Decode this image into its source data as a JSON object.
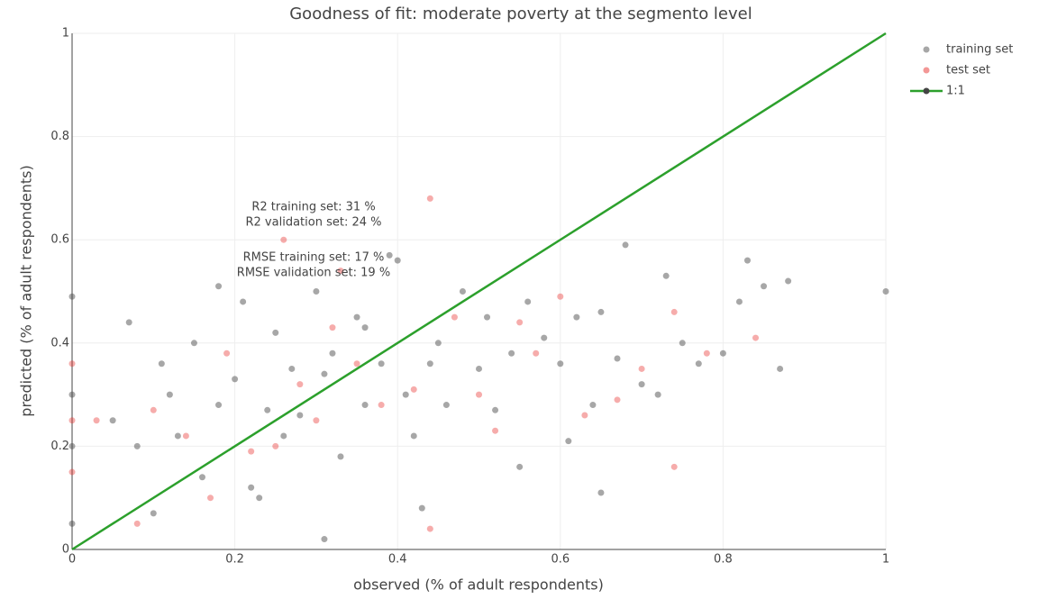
{
  "chart_data": {
    "type": "scatter",
    "title": "Goodness of fit: moderate poverty at the segmento level",
    "x_label": "observed (% of adult respondents)",
    "y_label": "predicted (% of adult respondents)",
    "xlim": [
      0,
      1
    ],
    "ylim": [
      0,
      1
    ],
    "xticks": [
      0,
      0.2,
      0.4,
      0.6,
      0.8,
      1
    ],
    "yticks": [
      0,
      0.2,
      0.4,
      0.6,
      0.8,
      1
    ],
    "grid": true,
    "legend": "top-right",
    "annotations": [
      "R2 training set: 31 %",
      "R2 validation set: 24 %",
      "RMSE training set: 17 %",
      "RMSE validation set: 19 %"
    ],
    "series": [
      {
        "name": "training set",
        "color": "#505050",
        "mode": "markers",
        "x": [
          0,
          0,
          0,
          0,
          0.05,
          0.07,
          0.08,
          0.1,
          0.11,
          0.12,
          0.13,
          0.15,
          0.16,
          0.18,
          0.18,
          0.2,
          0.21,
          0.22,
          0.24,
          0.25,
          0.26,
          0.27,
          0.28,
          0.3,
          0.31,
          0.32,
          0.33,
          0.35,
          0.36,
          0.38,
          0.39,
          0.4,
          0.41,
          0.42,
          0.43,
          0.45,
          0.46,
          0.48,
          0.5,
          0.51,
          0.52,
          0.54,
          0.55,
          0.56,
          0.58,
          0.6,
          0.61,
          0.62,
          0.64,
          0.65,
          0.67,
          0.68,
          0.7,
          0.72,
          0.73,
          0.75,
          0.77,
          0.8,
          0.82,
          0.83,
          0.85,
          0.87,
          0.88,
          1.0,
          0.31,
          0.44,
          0.65,
          0.36,
          0.23
        ],
        "values": [
          0.49,
          0.3,
          0.2,
          0.05,
          0.25,
          0.44,
          0.2,
          0.07,
          0.36,
          0.3,
          0.22,
          0.4,
          0.14,
          0.51,
          0.28,
          0.33,
          0.48,
          0.12,
          0.27,
          0.42,
          0.22,
          0.35,
          0.26,
          0.5,
          0.02,
          0.38,
          0.18,
          0.45,
          0.28,
          0.36,
          0.57,
          0.56,
          0.3,
          0.22,
          0.08,
          0.4,
          0.28,
          0.5,
          0.35,
          0.45,
          0.27,
          0.38,
          0.16,
          0.48,
          0.41,
          0.36,
          0.21,
          0.45,
          0.28,
          0.46,
          0.37,
          0.59,
          0.32,
          0.3,
          0.53,
          0.4,
          0.36,
          0.38,
          0.48,
          0.56,
          0.51,
          0.35,
          0.52,
          0.5,
          0.34,
          0.36,
          0.11,
          0.43,
          0.1
        ]
      },
      {
        "name": "test set",
        "color": "#e8302e",
        "mode": "markers",
        "x": [
          0,
          0,
          0,
          0.03,
          0.08,
          0.1,
          0.14,
          0.17,
          0.19,
          0.22,
          0.26,
          0.28,
          0.3,
          0.33,
          0.35,
          0.38,
          0.42,
          0.44,
          0.44,
          0.47,
          0.5,
          0.52,
          0.55,
          0.57,
          0.6,
          0.63,
          0.67,
          0.7,
          0.74,
          0.74,
          0.78,
          0.84,
          0.25,
          0.32
        ],
        "values": [
          0.36,
          0.25,
          0.15,
          0.25,
          0.05,
          0.27,
          0.22,
          0.1,
          0.38,
          0.19,
          0.6,
          0.32,
          0.25,
          0.54,
          0.36,
          0.28,
          0.31,
          0.04,
          0.68,
          0.45,
          0.3,
          0.23,
          0.44,
          0.38,
          0.49,
          0.26,
          0.29,
          0.35,
          0.16,
          0.46,
          0.38,
          0.41,
          0.2,
          0.43
        ]
      },
      {
        "name": "1:1",
        "color": "#2ca02c",
        "mode": "lines",
        "x": [
          0,
          1
        ],
        "values": [
          0,
          1
        ]
      }
    ]
  }
}
